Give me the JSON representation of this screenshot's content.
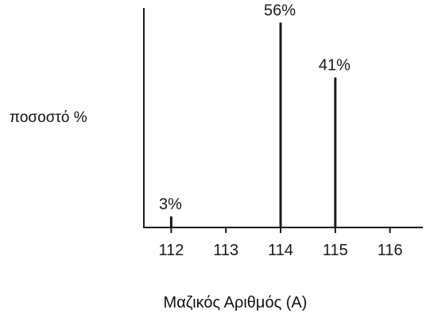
{
  "chart_data": {
    "type": "bar",
    "title": "",
    "ylabel": "ποσοστό %",
    "xlabel": "Μαζικός Αριθμός (A)",
    "x": [
      112,
      113,
      114,
      115,
      116
    ],
    "tick_labels": [
      "112",
      "113",
      "114",
      "115",
      "116"
    ],
    "series": [
      {
        "values": [
          3,
          0,
          56,
          41,
          0
        ],
        "data_labels": [
          "3%",
          "",
          "56%",
          "41%",
          ""
        ]
      }
    ],
    "xlim": [
      111.5,
      116.6
    ],
    "ylim": [
      0,
      60
    ],
    "grid": false,
    "legend": "none",
    "bar_style": "stick",
    "colors": {
      "bar": "#1a1a1a",
      "axis": "#1a1a1a",
      "text": "#1a1a1a"
    }
  }
}
